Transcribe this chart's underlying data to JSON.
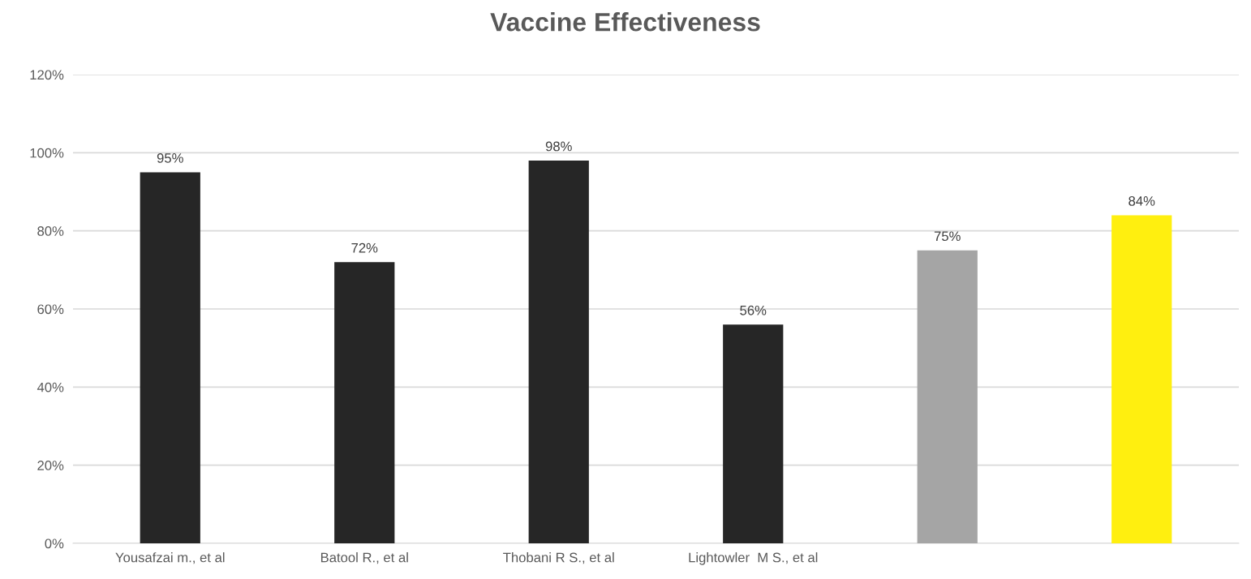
{
  "chart_data": {
    "type": "bar",
    "title": "Vaccine Effectiveness",
    "categories": [
      "Yousafzai m., et al",
      "Batool R., et al",
      "Thobani R S., et al",
      "Lightowler  M S., et al",
      null,
      null
    ],
    "values": [
      95,
      72,
      98,
      56,
      75,
      84
    ],
    "colors": [
      "#262626",
      "#262626",
      "#262626",
      "#262626",
      "#a5a5a5",
      "#ffef0f"
    ],
    "value_labels": [
      "95%",
      "72%",
      "98%",
      "56%",
      "75%",
      "84%"
    ],
    "ylim": [
      0,
      120
    ],
    "yticks": [
      {
        "value": 0,
        "label": "0%"
      },
      {
        "value": 20,
        "label": "20%"
      },
      {
        "value": 40,
        "label": "40%"
      },
      {
        "value": 60,
        "label": "60%"
      },
      {
        "value": 80,
        "label": "80%"
      },
      {
        "value": 100,
        "label": "100%"
      },
      {
        "value": 120,
        "label": "120%"
      }
    ],
    "grid": "y"
  }
}
